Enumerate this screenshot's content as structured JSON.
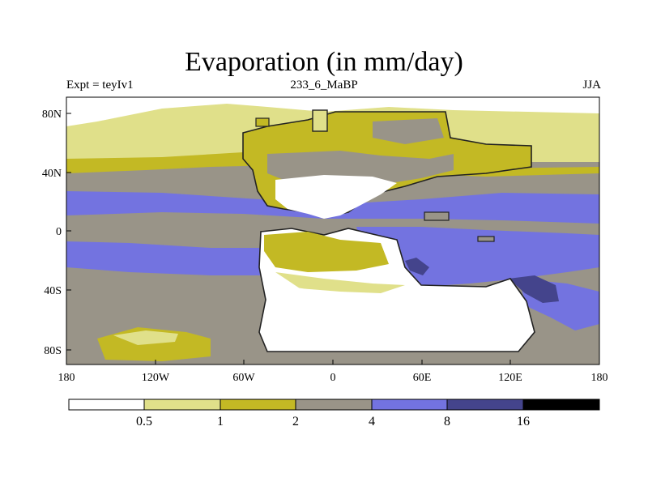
{
  "title": "Evaporation (in mm/day)",
  "subtitle_left": "Expt = teyIv1",
  "subtitle_center": "233_6_MaBP",
  "subtitle_right": "JJA",
  "axes": {
    "x_ticks": [
      "180",
      "120W",
      "60W",
      "0",
      "60E",
      "120E",
      "180"
    ],
    "y_ticks": [
      "80N",
      "40N",
      "0",
      "40S",
      "80S"
    ]
  },
  "colorbar": {
    "colors": [
      "#ffffff",
      "#e0e08a",
      "#c3b924",
      "#999488",
      "#7373e0",
      "#44448c",
      "#000000"
    ],
    "labels": [
      "0.5",
      "1",
      "2",
      "4",
      "8",
      "16"
    ]
  },
  "chart_data": {
    "type": "heatmap",
    "title": "Evaporation (in mm/day)",
    "experiment": "teyIv1",
    "period": "233_6_MaBP",
    "season": "JJA",
    "x_range": [
      -180,
      180
    ],
    "y_range": [
      -90,
      90
    ],
    "levels": [
      0.5,
      1,
      2,
      4,
      8,
      16
    ]
  }
}
